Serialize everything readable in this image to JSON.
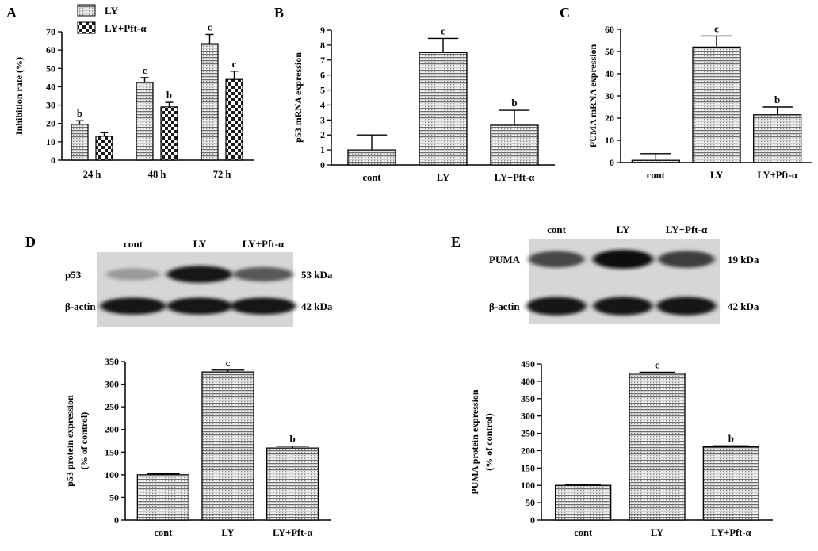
{
  "panels": {
    "A": {
      "letter": "A",
      "chart_data": {
        "type": "bar",
        "categories": [
          "24 h",
          "48 h",
          "72 h"
        ],
        "series": [
          {
            "name": "LY",
            "values": [
              19.5,
              42.5,
              63.5
            ],
            "errors": [
              2.0,
              2.5,
              5.0
            ],
            "sig": [
              "b",
              "c",
              "c"
            ]
          },
          {
            "name": "LY+Pft-α",
            "values": [
              13.0,
              29.0,
              44.0
            ],
            "errors": [
              2.0,
              2.5,
              4.5
            ],
            "sig": [
              "",
              "b",
              "c"
            ]
          }
        ],
        "ylabel": "Inhibition rate (%)",
        "xlabel": "",
        "ylim": [
          0,
          70
        ],
        "yticks": [
          0,
          10,
          20,
          30,
          40,
          50,
          60,
          70
        ],
        "legend_position": "top-left"
      }
    },
    "B": {
      "letter": "B",
      "chart_data": {
        "type": "bar",
        "categories": [
          "cont",
          "LY",
          "LY+Pft-α"
        ],
        "values": [
          1.0,
          7.5,
          2.65
        ],
        "errors": [
          1.0,
          0.95,
          1.0
        ],
        "sig": [
          "",
          "c",
          "b"
        ],
        "ylabel": "p53 mRNA expression",
        "xlabel": "",
        "ylim": [
          0,
          9
        ],
        "yticks": [
          0,
          1,
          2,
          3,
          4,
          5,
          6,
          7,
          8,
          9
        ]
      }
    },
    "C": {
      "letter": "C",
      "chart_data": {
        "type": "bar",
        "categories": [
          "cont",
          "LY",
          "LY+Pft-α"
        ],
        "values": [
          1.0,
          52.0,
          21.5
        ],
        "errors": [
          3.0,
          5.0,
          3.5
        ],
        "sig": [
          "",
          "c",
          "b"
        ],
        "ylabel": "PUMA mRNA expression",
        "xlabel": "",
        "ylim": [
          0,
          60
        ],
        "yticks": [
          0,
          10,
          20,
          30,
          40,
          50,
          60
        ]
      }
    },
    "D": {
      "letter": "D",
      "blot": {
        "lanes": [
          "cont",
          "LY",
          "LY+Pft-α"
        ],
        "rows": [
          {
            "label": "p53",
            "size": "53 kDa",
            "intensity": [
              0.25,
              0.95,
              0.6
            ]
          },
          {
            "label": "β-actin",
            "size": "42 kDa",
            "intensity": [
              0.95,
              0.95,
              0.95
            ]
          }
        ]
      },
      "chart_data": {
        "type": "bar",
        "categories": [
          "cont",
          "LY",
          "LY+Pft-α"
        ],
        "values": [
          100,
          327,
          159
        ],
        "errors": [
          2,
          4,
          4
        ],
        "sig": [
          "",
          "c",
          "b"
        ],
        "ylabel_lines": [
          "p53 protein expression",
          "(% of control)"
        ],
        "xlabel": "",
        "ylim": [
          0,
          350
        ],
        "yticks": [
          0,
          50,
          100,
          150,
          200,
          250,
          300,
          350
        ]
      }
    },
    "E": {
      "letter": "E",
      "blot": {
        "lanes": [
          "cont",
          "LY",
          "LY+Pft-α"
        ],
        "rows": [
          {
            "label": "PUMA",
            "size": "19 kDa",
            "intensity": [
              0.7,
              1.0,
              0.75
            ]
          },
          {
            "label": "β-actin",
            "size": "42 kDa",
            "intensity": [
              0.95,
              0.95,
              0.95
            ]
          }
        ]
      },
      "chart_data": {
        "type": "bar",
        "categories": [
          "cont",
          "LY",
          "LY+Pft-α"
        ],
        "values": [
          100,
          423,
          211
        ],
        "errors": [
          3,
          3,
          3
        ],
        "sig": [
          "",
          "c",
          "b"
        ],
        "ylabel_lines": [
          "PUMA protein expression",
          "(% of control)"
        ],
        "xlabel": "",
        "ylim": [
          0,
          450
        ],
        "yticks": [
          0,
          50,
          100,
          150,
          200,
          250,
          300,
          350,
          400,
          450
        ]
      }
    }
  }
}
